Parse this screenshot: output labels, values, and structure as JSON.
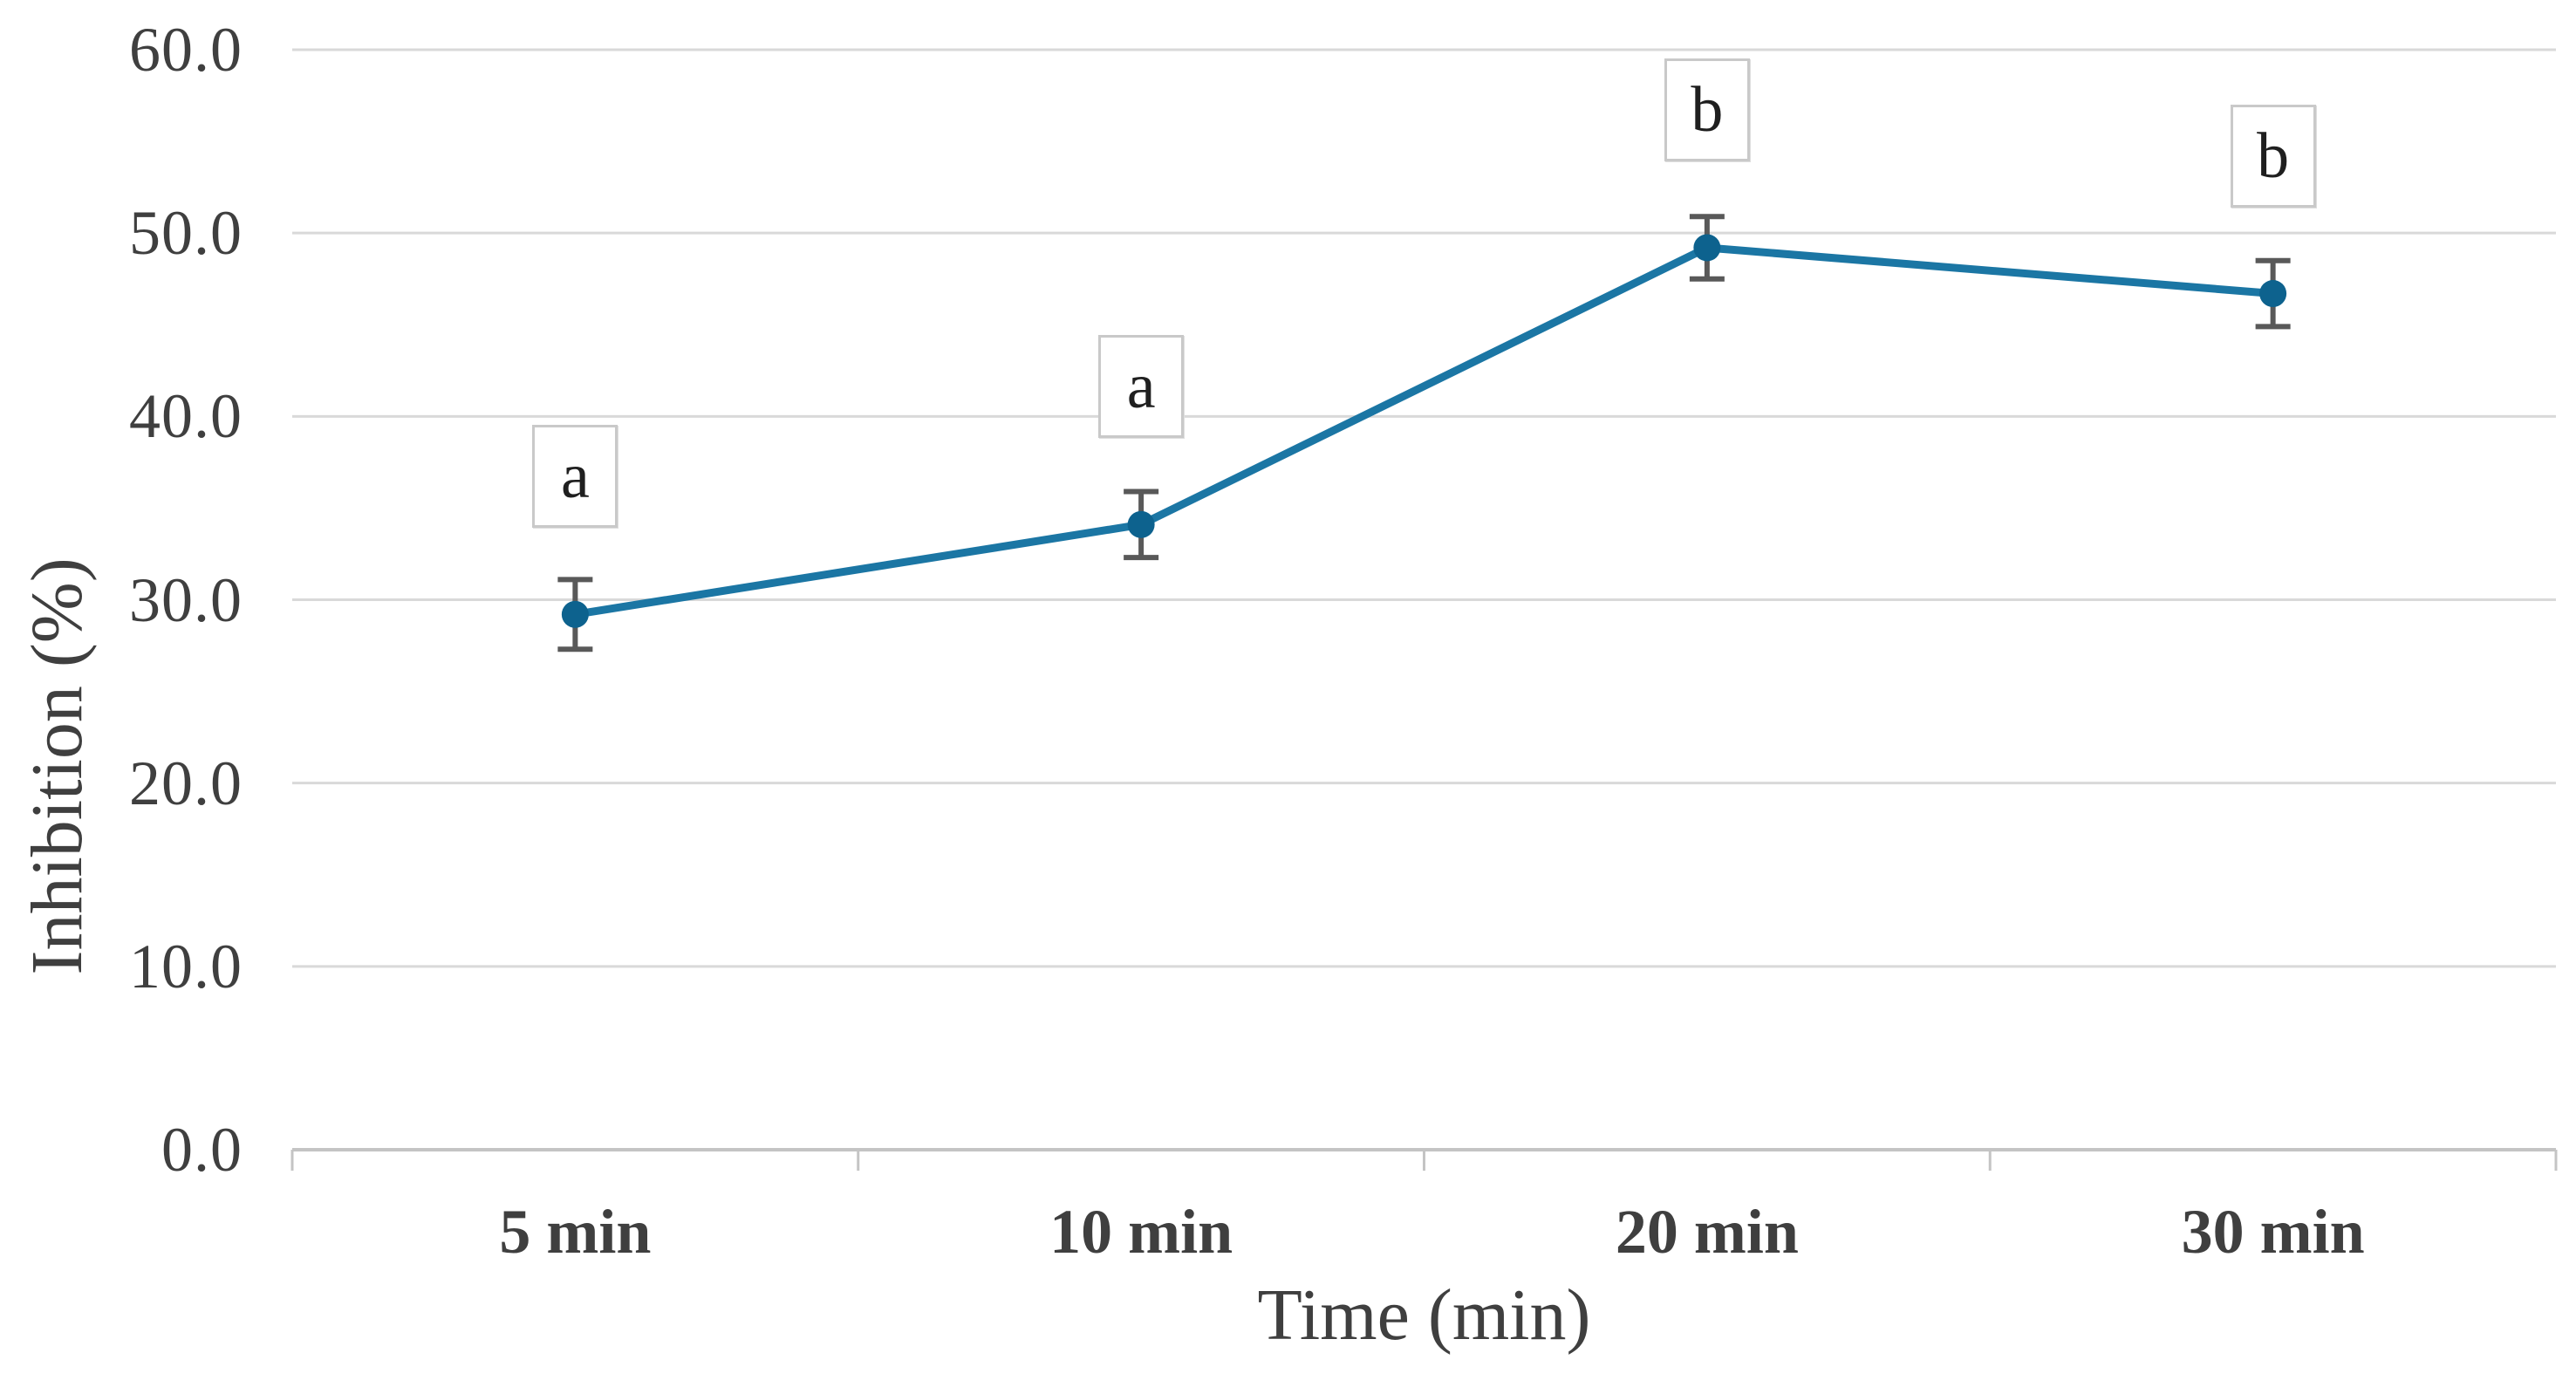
{
  "chart_data": {
    "type": "line",
    "title": "",
    "xlabel": "Time (min)",
    "ylabel": "Inhibition (%)",
    "categories": [
      "5 min",
      "10 min",
      "20 min",
      "30 min"
    ],
    "series": [
      {
        "name": "Inhibition",
        "values": [
          29.2,
          34.1,
          49.2,
          46.7
        ],
        "error_bars": [
          1.9,
          1.8,
          1.7,
          1.8
        ],
        "point_labels": [
          "a",
          "a",
          "b",
          "b"
        ]
      }
    ],
    "ylim": [
      0,
      60
    ],
    "ytick_step": 10,
    "ytick_labels": [
      "0.0",
      "10.0",
      "20.0",
      "30.0",
      "40.0",
      "50.0",
      "60.0"
    ],
    "grid": "horizontal-only",
    "legend_position": "none",
    "marker": "filled-circle",
    "colors": {
      "line": "#1b76a4",
      "marker": "#0d628e",
      "error_bar": "#595959",
      "gridline": "#d9d9d9",
      "axis_line": "#c4c4c4",
      "tick_mark": "#c4c4c4",
      "text": "#3f3f3f",
      "annotation_border": "#c9c9c9",
      "annotation_text": "#1f1f1f",
      "background": "#ffffff"
    }
  }
}
